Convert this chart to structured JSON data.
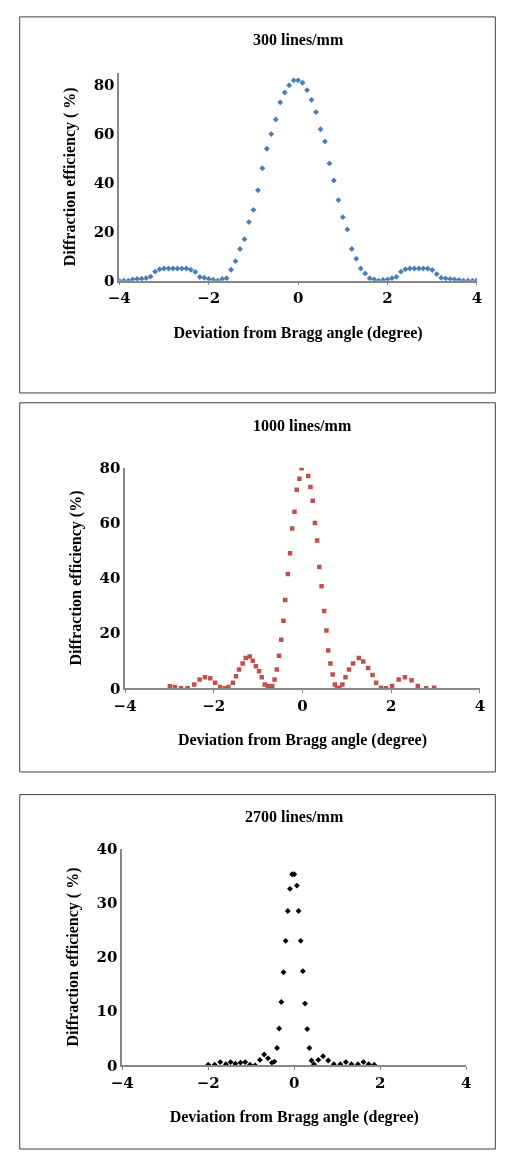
{
  "chart_data": [
    {
      "type": "scatter",
      "title": "300 lines/mm",
      "xlabel": "Deviation from Bragg angle (degree)",
      "ylabel": "Diffraction efficiency ( %)",
      "xlim": [
        -4,
        4
      ],
      "xticks": [
        -4,
        -2,
        0,
        2,
        4
      ],
      "ylim": [
        0,
        85
      ],
      "yticks": [
        0,
        20,
        40,
        60,
        80
      ],
      "marker": "diamond",
      "series": [
        {
          "color": "#4a7ebb",
          "x": [
            -4.0,
            -3.9,
            -3.8,
            -3.7,
            -3.6,
            -3.5,
            -3.4,
            -3.3,
            -3.2,
            -3.1,
            -3.0,
            -2.9,
            -2.8,
            -2.7,
            -2.6,
            -2.5,
            -2.4,
            -2.3,
            -2.2,
            -2.1,
            -2.0,
            -1.9,
            -1.8,
            -1.7,
            -1.6,
            -1.5,
            -1.4,
            -1.3,
            -1.2,
            -1.1,
            -1.0,
            -0.9,
            -0.8,
            -0.7,
            -0.6,
            -0.5,
            -0.4,
            -0.3,
            -0.2,
            -0.1,
            0.0,
            0.1,
            0.2,
            0.3,
            0.4,
            0.5,
            0.6,
            0.7,
            0.8,
            0.9,
            1.0,
            1.1,
            1.2,
            1.3,
            1.4,
            1.5,
            1.6,
            1.7,
            1.8,
            1.9,
            2.0,
            2.1,
            2.2,
            2.3,
            2.4,
            2.5,
            2.6,
            2.7,
            2.8,
            2.9,
            3.0,
            3.1,
            3.2,
            3.3,
            3.4,
            3.5,
            3.6,
            3.7,
            3.8,
            3.9,
            4.0
          ],
          "values": [
            0,
            0,
            0,
            0.5,
            0.7,
            0.8,
            1,
            1.7,
            3.7,
            4.7,
            5,
            5,
            5,
            5,
            5,
            5,
            4.5,
            3.6,
            1.5,
            1.2,
            0.7,
            0.4,
            0,
            0.7,
            1,
            4.5,
            8,
            13,
            17,
            24,
            29,
            37,
            46,
            54,
            60,
            66,
            73,
            77,
            80,
            82,
            82,
            81,
            78,
            74,
            69,
            62,
            57,
            48,
            41,
            33,
            26,
            21,
            13,
            9,
            5,
            3,
            1,
            0.5,
            0,
            0.3,
            0.5,
            1,
            1.6,
            3.7,
            4.7,
            5,
            5,
            5,
            5,
            5,
            4.4,
            2.7,
            1.2,
            0.9,
            0.7,
            0.5,
            0.3,
            0,
            0,
            0,
            0.2
          ]
        }
      ]
    },
    {
      "type": "scatter",
      "title": "1000 lines/mm",
      "xlabel": "Deviation from Bragg angle (degree)",
      "ylabel": "Diffraction efficiency (%)",
      "xlim": [
        -4,
        4
      ],
      "xticks": [
        -4,
        -2,
        0,
        2,
        4
      ],
      "ylim": [
        0,
        80
      ],
      "yticks": [
        0,
        20,
        40,
        60,
        80
      ],
      "marker": "square",
      "series": [
        {
          "color": "#c0504d",
          "x": [
            -2.99,
            -2.88,
            -2.74,
            -2.59,
            -2.44,
            -2.32,
            -2.2,
            -2.08,
            -1.97,
            -1.86,
            -1.75,
            -1.67,
            -1.57,
            -1.5,
            -1.43,
            -1.35,
            -1.28,
            -1.19,
            -1.12,
            -1.05,
            -0.98,
            -0.92,
            -0.85,
            -0.78,
            -0.73,
            -0.68,
            -0.63,
            -0.58,
            -0.53,
            -0.48,
            -0.43,
            -0.39,
            -0.33,
            -0.28,
            -0.23,
            -0.18,
            -0.13,
            -0.07,
            -0.02,
            0.13,
            0.18,
            0.23,
            0.28,
            0.33,
            0.38,
            0.43,
            0.49,
            0.54,
            0.58,
            0.63,
            0.68,
            0.73,
            0.78,
            0.83,
            0.9,
            0.97,
            1.05,
            1.14,
            1.27,
            1.37,
            1.48,
            1.58,
            1.66,
            1.77,
            1.88,
            2.02,
            2.17,
            2.31,
            2.46,
            2.6,
            2.79,
            2.97
          ],
          "values": [
            0.7,
            0.5,
            0,
            0,
            1.4,
            3.2,
            4,
            3.6,
            2,
            0.5,
            0,
            0.5,
            2,
            4.4,
            6.8,
            9,
            11,
            11.5,
            10,
            8,
            6.2,
            4,
            1.4,
            0.8,
            0,
            0.8,
            3.2,
            6.8,
            11.8,
            17.6,
            24.5,
            32,
            41.5,
            49,
            58,
            64,
            72,
            76,
            79.8,
            77,
            73,
            68,
            60,
            53.6,
            44,
            37,
            28,
            21,
            13.7,
            9,
            5,
            1.4,
            0.2,
            0,
            1.4,
            4,
            6.8,
            9,
            11,
            9.7,
            7.4,
            4.8,
            2,
            0.2,
            0,
            0.8,
            3.2,
            4,
            2.9,
            0.8,
            0,
            0.2
          ]
        }
      ]
    },
    {
      "type": "scatter",
      "title": "2700 lines/mm",
      "xlabel": "Deviation from Bragg angle (degree)",
      "ylabel": "Diffraction efficiency ( %)",
      "xlim": [
        -4,
        4
      ],
      "xticks": [
        -4,
        -2,
        0,
        2,
        4
      ],
      "ylim": [
        0,
        40
      ],
      "yticks": [
        0,
        10,
        20,
        30,
        40
      ],
      "marker": "diamond",
      "series": [
        {
          "color": "#000000",
          "x": [
            -2.0,
            -1.85,
            -1.72,
            -1.59,
            -1.48,
            -1.37,
            -1.25,
            -1.14,
            -1.03,
            -0.91,
            -0.8,
            -0.7,
            -0.61,
            -0.52,
            -0.46,
            -0.4,
            -0.35,
            -0.3,
            -0.25,
            -0.2,
            -0.15,
            -0.1,
            -0.05,
            0.0,
            0.06,
            0.1,
            0.15,
            0.2,
            0.25,
            0.3,
            0.35,
            0.4,
            0.46,
            0.56,
            0.67,
            0.79,
            0.92,
            1.07,
            1.2,
            1.33,
            1.48,
            1.61,
            1.73,
            1.86
          ],
          "values": [
            0.1,
            0.1,
            0.6,
            0.2,
            0.6,
            0.3,
            0.5,
            0.6,
            0.1,
            0,
            1,
            2,
            1.3,
            0.5,
            0.7,
            3.2,
            6.8,
            11.7,
            17.2,
            23,
            28.5,
            32.6,
            35.3,
            35.3,
            33.2,
            28.5,
            23,
            17.4,
            11.4,
            6.7,
            3.2,
            0.9,
            0.2,
            1,
            1.7,
            0.9,
            0.2,
            0.2,
            0.6,
            0.2,
            0.2,
            0.6,
            0.2,
            0.1
          ]
        }
      ]
    }
  ]
}
